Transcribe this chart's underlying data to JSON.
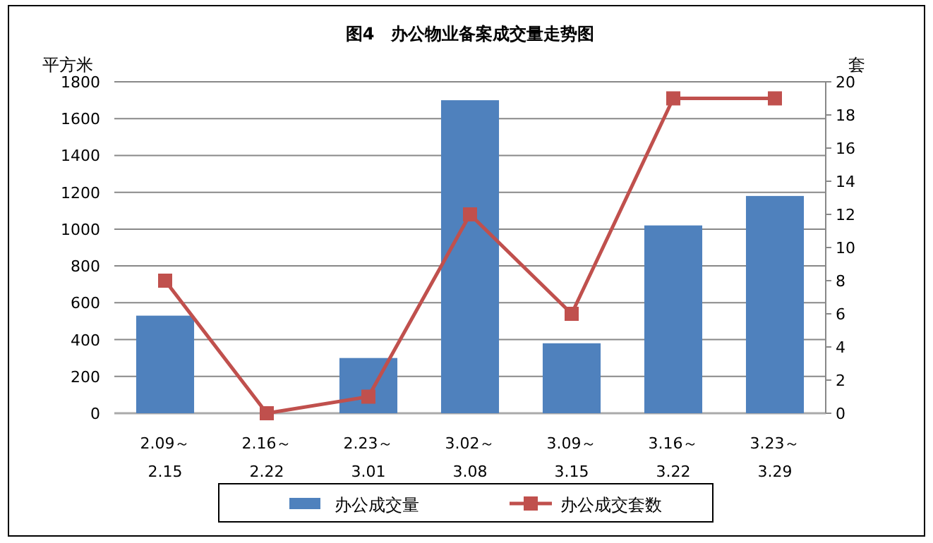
{
  "chart_data": {
    "type": "bar",
    "title": "图4　办公物业备案成交量走势图",
    "categories": [
      "2.09～2.15",
      "2.16～2.22",
      "2.23～3.01",
      "3.02～3.08",
      "3.09～3.15",
      "3.16～3.22",
      "3.23～3.29"
    ],
    "series": [
      {
        "name": "办公成交量",
        "color": "#4f81bd",
        "values": [
          530,
          0,
          300,
          1700,
          380,
          1020,
          1180
        ]
      },
      {
        "name": "办公成交套数",
        "type": "line",
        "axis": "y2",
        "color": "#c0504d",
        "marker": "square",
        "values": [
          8,
          0,
          1,
          12,
          6,
          19,
          19
        ]
      }
    ],
    "ylabel": "平方米",
    "y2label": "套",
    "ylim": [
      0,
      1800
    ],
    "yticks": [
      0,
      200,
      400,
      600,
      800,
      1000,
      1200,
      1400,
      1600,
      1800
    ],
    "y2lim": [
      0,
      20
    ],
    "y2ticks": [
      0,
      2,
      4,
      6,
      8,
      10,
      12,
      14,
      16,
      18,
      20
    ],
    "grid": "y",
    "legend": "bottom"
  }
}
